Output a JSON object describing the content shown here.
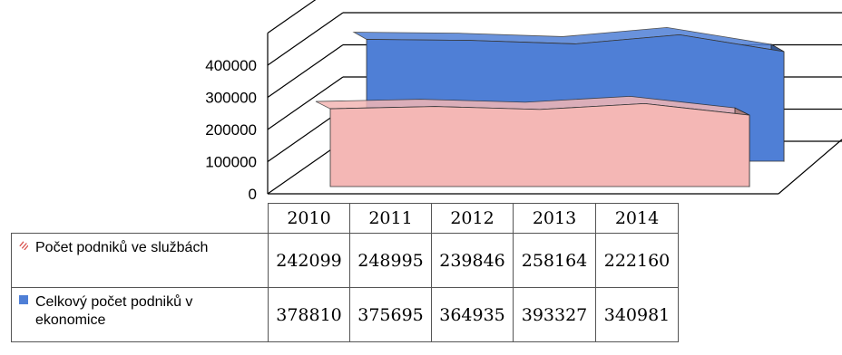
{
  "chart_data": {
    "type": "area",
    "three_d": true,
    "categories": [
      "2010",
      "2011",
      "2012",
      "2013",
      "2014"
    ],
    "ylim": [
      0,
      400000
    ],
    "yticks": [
      "0",
      "100000",
      "200000",
      "300000",
      "400000"
    ],
    "series": [
      {
        "name": "Počet podniků ve službách",
        "values": [
          242099,
          248995,
          239846,
          258164,
          222160
        ],
        "color": "#f4b7b5",
        "legend_icon": "hatch-icon"
      },
      {
        "name": "Celkový počet podniků v ekonomice",
        "values": [
          378810,
          375695,
          364935,
          393327,
          340981
        ],
        "color": "#4f7fd6",
        "legend_icon": "square-icon"
      }
    ],
    "data_table": {
      "rows": [
        {
          "label": "Počet podniků ve službách",
          "values": [
            "242099",
            "248995",
            "239846",
            "258164",
            "222160"
          ]
        },
        {
          "label": "Celkový počet podniků v ekonomice",
          "values": [
            "378810",
            "375695",
            "364935",
            "393327",
            "340981"
          ]
        }
      ]
    },
    "grid": true
  }
}
